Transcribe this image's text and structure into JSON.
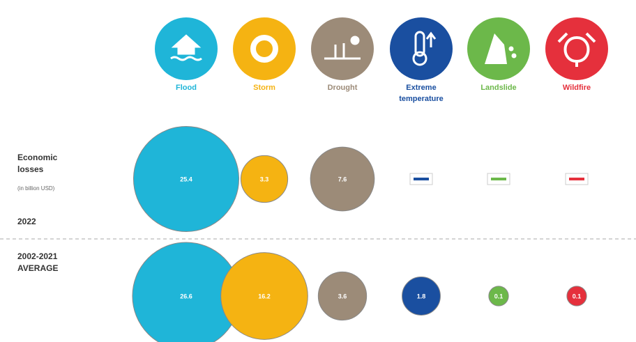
{
  "chart_data": {
    "type": "bubble",
    "y_label": "Economic losses",
    "unit": "(in billion USD)",
    "categories": [
      "Flood",
      "Storm",
      "Drought",
      "Extreme temperature",
      "Landslide",
      "Wildfire"
    ],
    "colors": [
      "#1fb5d8",
      "#f5b312",
      "#9c8b78",
      "#1a4fa0",
      "#6cb84a",
      "#e5303c"
    ],
    "series": [
      {
        "name": "2022",
        "values": [
          25.4,
          3.3,
          7.6,
          null,
          null,
          null
        ]
      },
      {
        "name": "2002-2021 AVERAGE",
        "values": [
          26.6,
          16.2,
          3.6,
          1.8,
          0.1,
          0.1
        ]
      }
    ]
  }
}
